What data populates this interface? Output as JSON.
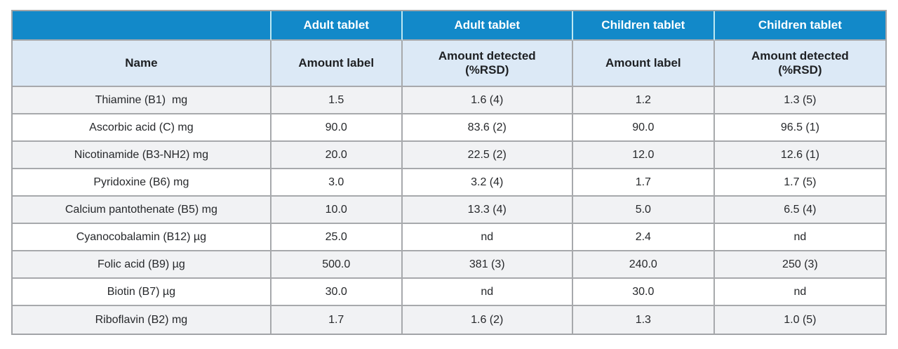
{
  "colors": {
    "header_blue": "#1289c9",
    "header_divider_cyan": "#bde8f2",
    "subheader_light_blue": "#dce9f6",
    "row_alternate_gray": "#f1f2f4",
    "grid_line_gray": "#a7a9ac",
    "text_dark": "#26282b",
    "header_text_white": "#ffffff"
  },
  "table": {
    "group_headers": [
      "",
      "Adult tablet",
      "Adult tablet",
      "Children tablet",
      "Children tablet"
    ],
    "column_headers": [
      "Name",
      "Amount label",
      "Amount detected\n(%RSD)",
      "Amount label",
      "Amount detected\n(%RSD)"
    ],
    "rows": [
      [
        "Thiamine (B1)  mg",
        "1.5",
        "1.6 (4)",
        "1.2",
        "1.3 (5)"
      ],
      [
        "Ascorbic acid (C) mg",
        "90.0",
        "83.6 (2)",
        "90.0",
        "96.5 (1)"
      ],
      [
        "Nicotinamide (B3-NH2) mg",
        "20.0",
        "22.5 (2)",
        "12.0",
        "12.6 (1)"
      ],
      [
        "Pyridoxine (B6) mg",
        "3.0",
        "3.2 (4)",
        "1.7",
        "1.7 (5)"
      ],
      [
        "Calcium pantothenate (B5) mg",
        "10.0",
        "13.3 (4)",
        "5.0",
        "6.5 (4)"
      ],
      [
        "Cyanocobalamin (B12) µg",
        "25.0",
        "nd",
        "2.4",
        "nd"
      ],
      [
        "Folic acid (B9) µg",
        "500.0",
        "381 (3)",
        "240.0",
        "250 (3)"
      ],
      [
        "Biotin (B7) µg",
        "30.0",
        "nd",
        "30.0",
        "nd"
      ],
      [
        "Riboflavin (B2) mg",
        "1.7",
        "1.6 (2)",
        "1.3",
        "1.0 (5)"
      ]
    ]
  }
}
